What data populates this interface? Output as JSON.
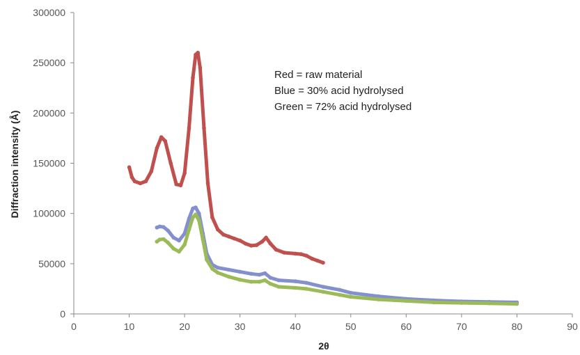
{
  "chart_data": {
    "type": "scatter",
    "xlabel": "2θ",
    "ylabel": "Diffraction intensity (Å)",
    "xlim": [
      0,
      90
    ],
    "ylim": [
      0,
      300000
    ],
    "x_ticks": [
      0,
      10,
      20,
      30,
      40,
      50,
      60,
      70,
      80,
      90
    ],
    "y_ticks": [
      0,
      50000,
      100000,
      150000,
      200000,
      250000,
      300000
    ],
    "grid": false,
    "annotations": [
      "Red = raw material",
      "Blue = 30% acid hydrolysed",
      "Green = 72% acid hydrolysed"
    ],
    "series": [
      {
        "color": "#C0504D",
        "points": [
          [
            10,
            146000
          ],
          [
            10.5,
            136000
          ],
          [
            11,
            132000
          ],
          [
            12,
            130000
          ],
          [
            13,
            132000
          ],
          [
            14,
            142000
          ],
          [
            15,
            165000
          ],
          [
            15.8,
            176000
          ],
          [
            16.5,
            172000
          ],
          [
            17.5,
            150000
          ],
          [
            18.5,
            129000
          ],
          [
            19.3,
            128000
          ],
          [
            20,
            140000
          ],
          [
            20.8,
            185000
          ],
          [
            21.5,
            235000
          ],
          [
            22,
            258000
          ],
          [
            22.4,
            260000
          ],
          [
            22.8,
            245000
          ],
          [
            23.5,
            185000
          ],
          [
            24.2,
            130000
          ],
          [
            25,
            96000
          ],
          [
            26,
            84000
          ],
          [
            27,
            79000
          ],
          [
            28,
            77000
          ],
          [
            29,
            75000
          ],
          [
            30,
            73000
          ],
          [
            31,
            70000
          ],
          [
            32,
            68000
          ],
          [
            33,
            68500
          ],
          [
            34,
            72000
          ],
          [
            34.7,
            76000
          ],
          [
            35.5,
            70000
          ],
          [
            36.5,
            64000
          ],
          [
            38,
            61000
          ],
          [
            40,
            60000
          ],
          [
            41,
            59500
          ],
          [
            42,
            58000
          ],
          [
            43,
            55000
          ],
          [
            44,
            53000
          ],
          [
            45,
            51000
          ]
        ]
      },
      {
        "color": "#8490CE",
        "points": [
          [
            15,
            86000
          ],
          [
            15.5,
            87000
          ],
          [
            16.2,
            86500
          ],
          [
            17,
            83000
          ],
          [
            18,
            76000
          ],
          [
            19,
            73000
          ],
          [
            20,
            80000
          ],
          [
            20.8,
            95000
          ],
          [
            21.5,
            105000
          ],
          [
            22,
            106000
          ],
          [
            22.6,
            100000
          ],
          [
            23.3,
            80000
          ],
          [
            24,
            60000
          ],
          [
            25,
            49000
          ],
          [
            26,
            46000
          ],
          [
            28,
            44000
          ],
          [
            30,
            42000
          ],
          [
            32,
            40000
          ],
          [
            33.5,
            39000
          ],
          [
            34.5,
            40500
          ],
          [
            35.5,
            36000
          ],
          [
            37,
            33500
          ],
          [
            40,
            32500
          ],
          [
            42,
            31000
          ],
          [
            45,
            27000
          ],
          [
            48,
            24000
          ],
          [
            50,
            21000
          ],
          [
            55,
            17500
          ],
          [
            60,
            15000
          ],
          [
            65,
            13500
          ],
          [
            70,
            12500
          ],
          [
            75,
            12000
          ],
          [
            80,
            11500
          ]
        ]
      },
      {
        "color": "#9BBB59",
        "points": [
          [
            15,
            72000
          ],
          [
            15.5,
            74000
          ],
          [
            16.2,
            74500
          ],
          [
            17,
            71000
          ],
          [
            18,
            65000
          ],
          [
            19,
            62000
          ],
          [
            20,
            69000
          ],
          [
            20.8,
            84000
          ],
          [
            21.5,
            96000
          ],
          [
            22,
            99000
          ],
          [
            22.6,
            93000
          ],
          [
            23.3,
            74000
          ],
          [
            24,
            54000
          ],
          [
            25,
            45000
          ],
          [
            26,
            41000
          ],
          [
            28,
            37000
          ],
          [
            30,
            34000
          ],
          [
            32,
            32000
          ],
          [
            33.5,
            32000
          ],
          [
            34.5,
            33500
          ],
          [
            35.5,
            30000
          ],
          [
            37,
            27000
          ],
          [
            40,
            26000
          ],
          [
            42,
            25000
          ],
          [
            45,
            22000
          ],
          [
            48,
            19000
          ],
          [
            50,
            17000
          ],
          [
            55,
            14500
          ],
          [
            60,
            13000
          ],
          [
            65,
            11500
          ],
          [
            70,
            11000
          ],
          [
            75,
            10500
          ],
          [
            80,
            10000
          ]
        ]
      }
    ]
  }
}
